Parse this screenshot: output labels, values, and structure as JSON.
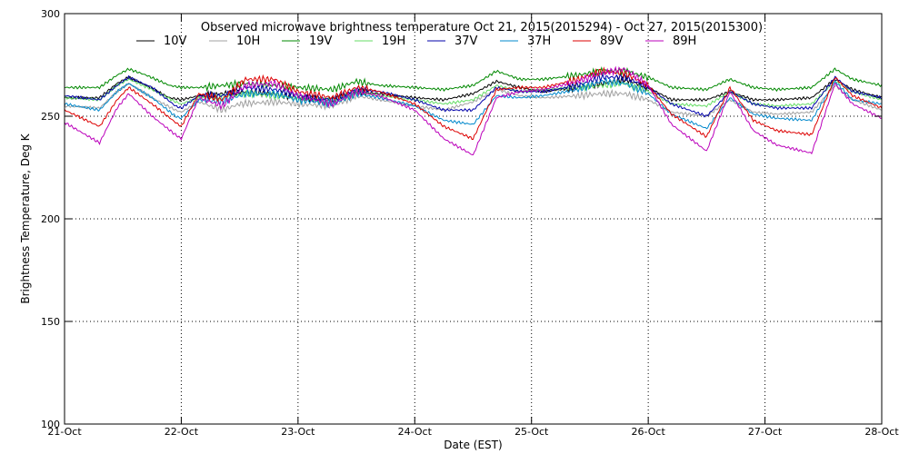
{
  "chart_data": {
    "type": "line",
    "title": "Observed microwave brightness temperature Oct 21, 2015(2015294) - Oct 27, 2015(2015300)",
    "xlabel": "Date (EST)",
    "ylabel": "Brightness Temperature, Deg K",
    "xlim": [
      0,
      7
    ],
    "ylim": [
      100,
      300
    ],
    "x_tick_values": [
      0,
      1,
      2,
      3,
      4,
      5,
      6,
      7
    ],
    "x_tick_labels": [
      "21-Oct",
      "22-Oct",
      "23-Oct",
      "24-Oct",
      "25-Oct",
      "26-Oct",
      "27-Oct",
      "28-Oct"
    ],
    "y_ticks": [
      100,
      150,
      200,
      250,
      300
    ],
    "grid": true,
    "legend_position": "top",
    "series": [
      {
        "name": "10V",
        "color": "#000000",
        "points": [
          [
            0,
            259
          ],
          [
            0.3,
            259
          ],
          [
            0.45,
            266
          ],
          [
            0.55,
            269
          ],
          [
            0.7,
            265
          ],
          [
            0.9,
            259
          ],
          [
            1.0,
            258
          ],
          [
            1.15,
            260
          ],
          [
            1.35,
            261
          ],
          [
            1.55,
            262
          ],
          [
            1.8,
            261
          ],
          [
            2.0,
            259
          ],
          [
            2.3,
            258
          ],
          [
            2.5,
            262
          ],
          [
            2.7,
            261
          ],
          [
            3.0,
            259
          ],
          [
            3.25,
            258
          ],
          [
            3.5,
            261
          ],
          [
            3.7,
            267
          ],
          [
            3.9,
            264
          ],
          [
            4.1,
            262
          ],
          [
            4.4,
            264
          ],
          [
            4.6,
            266
          ],
          [
            4.8,
            268
          ],
          [
            5.0,
            264
          ],
          [
            5.2,
            258
          ],
          [
            5.5,
            258
          ],
          [
            5.7,
            262
          ],
          [
            5.9,
            258
          ],
          [
            6.1,
            258
          ],
          [
            6.4,
            259
          ],
          [
            6.6,
            268
          ],
          [
            6.75,
            263
          ],
          [
            7.0,
            259
          ]
        ]
      },
      {
        "name": "10H",
        "color": "#a0a0a0",
        "points": [
          [
            0,
            255
          ],
          [
            0.3,
            254
          ],
          [
            0.45,
            262
          ],
          [
            0.55,
            266
          ],
          [
            0.75,
            259
          ],
          [
            0.95,
            253
          ],
          [
            1.0,
            252
          ],
          [
            1.15,
            257
          ],
          [
            1.35,
            253
          ],
          [
            1.5,
            256
          ],
          [
            1.8,
            257
          ],
          [
            2.0,
            256
          ],
          [
            2.3,
            255
          ],
          [
            2.5,
            260
          ],
          [
            2.7,
            258
          ],
          [
            3.0,
            255
          ],
          [
            3.25,
            253
          ],
          [
            3.5,
            257
          ],
          [
            3.7,
            263
          ],
          [
            3.9,
            260
          ],
          [
            4.1,
            259
          ],
          [
            4.4,
            260
          ],
          [
            4.6,
            261
          ],
          [
            4.8,
            261
          ],
          [
            5.0,
            258
          ],
          [
            5.2,
            252
          ],
          [
            5.5,
            250
          ],
          [
            5.7,
            258
          ],
          [
            5.9,
            252
          ],
          [
            6.1,
            251
          ],
          [
            6.4,
            252
          ],
          [
            6.6,
            265
          ],
          [
            6.75,
            258
          ],
          [
            7.0,
            253
          ]
        ]
      },
      {
        "name": "19V",
        "color": "#008800",
        "points": [
          [
            0,
            264
          ],
          [
            0.3,
            264
          ],
          [
            0.45,
            270
          ],
          [
            0.55,
            273
          ],
          [
            0.7,
            270
          ],
          [
            0.9,
            265
          ],
          [
            1.0,
            264
          ],
          [
            1.15,
            264
          ],
          [
            1.35,
            265
          ],
          [
            1.55,
            266
          ],
          [
            1.8,
            265
          ],
          [
            2.0,
            264
          ],
          [
            2.3,
            263
          ],
          [
            2.5,
            267
          ],
          [
            2.7,
            265
          ],
          [
            3.0,
            264
          ],
          [
            3.25,
            263
          ],
          [
            3.5,
            265
          ],
          [
            3.7,
            272
          ],
          [
            3.9,
            268
          ],
          [
            4.1,
            268
          ],
          [
            4.4,
            270
          ],
          [
            4.6,
            272
          ],
          [
            4.8,
            272
          ],
          [
            5.0,
            269
          ],
          [
            5.2,
            264
          ],
          [
            5.5,
            263
          ],
          [
            5.7,
            268
          ],
          [
            5.9,
            264
          ],
          [
            6.1,
            263
          ],
          [
            6.4,
            264
          ],
          [
            6.6,
            273
          ],
          [
            6.75,
            268
          ],
          [
            7.0,
            265
          ]
        ]
      },
      {
        "name": "19H",
        "color": "#66dd66",
        "points": [
          [
            0,
            259
          ],
          [
            0.3,
            258
          ],
          [
            0.45,
            265
          ],
          [
            0.55,
            268
          ],
          [
            0.75,
            263
          ],
          [
            0.95,
            257
          ],
          [
            1.0,
            256
          ],
          [
            1.15,
            259
          ],
          [
            1.35,
            259
          ],
          [
            1.55,
            261
          ],
          [
            1.8,
            260
          ],
          [
            2.0,
            259
          ],
          [
            2.3,
            257
          ],
          [
            2.5,
            262
          ],
          [
            2.7,
            260
          ],
          [
            3.0,
            258
          ],
          [
            3.25,
            256
          ],
          [
            3.5,
            258
          ],
          [
            3.7,
            265
          ],
          [
            3.9,
            262
          ],
          [
            4.1,
            263
          ],
          [
            4.4,
            264
          ],
          [
            4.6,
            265
          ],
          [
            4.8,
            266
          ],
          [
            5.0,
            262
          ],
          [
            5.2,
            256
          ],
          [
            5.5,
            255
          ],
          [
            5.7,
            262
          ],
          [
            5.9,
            256
          ],
          [
            6.1,
            255
          ],
          [
            6.4,
            256
          ],
          [
            6.6,
            267
          ],
          [
            6.75,
            262
          ],
          [
            7.0,
            258
          ]
        ]
      },
      {
        "name": "37V",
        "color": "#0000aa",
        "points": [
          [
            0,
            260
          ],
          [
            0.3,
            258
          ],
          [
            0.45,
            265
          ],
          [
            0.55,
            269
          ],
          [
            0.75,
            264
          ],
          [
            0.95,
            255
          ],
          [
            1.0,
            254
          ],
          [
            1.15,
            260
          ],
          [
            1.35,
            260
          ],
          [
            1.55,
            264
          ],
          [
            1.8,
            263
          ],
          [
            2.0,
            260
          ],
          [
            2.3,
            258
          ],
          [
            2.5,
            263
          ],
          [
            2.7,
            262
          ],
          [
            3.0,
            258
          ],
          [
            3.25,
            253
          ],
          [
            3.5,
            253
          ],
          [
            3.7,
            264
          ],
          [
            3.9,
            262
          ],
          [
            4.1,
            262
          ],
          [
            4.4,
            265
          ],
          [
            4.6,
            269
          ],
          [
            4.8,
            269
          ],
          [
            5.0,
            264
          ],
          [
            5.2,
            256
          ],
          [
            5.5,
            250
          ],
          [
            5.7,
            262
          ],
          [
            5.9,
            256
          ],
          [
            6.1,
            254
          ],
          [
            6.4,
            254
          ],
          [
            6.6,
            269
          ],
          [
            6.75,
            262
          ],
          [
            7.0,
            259
          ]
        ]
      },
      {
        "name": "37H",
        "color": "#0088cc",
        "points": [
          [
            0,
            256
          ],
          [
            0.3,
            253
          ],
          [
            0.45,
            262
          ],
          [
            0.55,
            266
          ],
          [
            0.75,
            259
          ],
          [
            0.95,
            250
          ],
          [
            1.0,
            249
          ],
          [
            1.15,
            258
          ],
          [
            1.35,
            257
          ],
          [
            1.55,
            261
          ],
          [
            1.8,
            261
          ],
          [
            2.0,
            258
          ],
          [
            2.3,
            256
          ],
          [
            2.5,
            261
          ],
          [
            2.7,
            259
          ],
          [
            3.0,
            255
          ],
          [
            3.25,
            248
          ],
          [
            3.5,
            246
          ],
          [
            3.7,
            260
          ],
          [
            3.9,
            259
          ],
          [
            4.1,
            260
          ],
          [
            4.4,
            263
          ],
          [
            4.6,
            267
          ],
          [
            4.8,
            266
          ],
          [
            5.0,
            261
          ],
          [
            5.2,
            251
          ],
          [
            5.5,
            244
          ],
          [
            5.7,
            259
          ],
          [
            5.9,
            251
          ],
          [
            6.1,
            249
          ],
          [
            6.4,
            248
          ],
          [
            6.6,
            267
          ],
          [
            6.75,
            258
          ],
          [
            7.0,
            256
          ]
        ]
      },
      {
        "name": "89V",
        "color": "#dd0000",
        "points": [
          [
            0,
            253
          ],
          [
            0.3,
            245
          ],
          [
            0.45,
            258
          ],
          [
            0.55,
            264
          ],
          [
            0.75,
            256
          ],
          [
            0.95,
            247
          ],
          [
            1.0,
            245
          ],
          [
            1.15,
            261
          ],
          [
            1.35,
            258
          ],
          [
            1.55,
            268
          ],
          [
            1.8,
            268
          ],
          [
            2.0,
            262
          ],
          [
            2.3,
            259
          ],
          [
            2.5,
            264
          ],
          [
            2.7,
            262
          ],
          [
            3.0,
            256
          ],
          [
            3.25,
            245
          ],
          [
            3.5,
            239
          ],
          [
            3.7,
            263
          ],
          [
            3.9,
            264
          ],
          [
            4.1,
            264
          ],
          [
            4.4,
            268
          ],
          [
            4.6,
            272
          ],
          [
            4.8,
            271
          ],
          [
            5.0,
            265
          ],
          [
            5.2,
            251
          ],
          [
            5.5,
            240
          ],
          [
            5.7,
            264
          ],
          [
            5.9,
            248
          ],
          [
            6.1,
            243
          ],
          [
            6.4,
            241
          ],
          [
            6.6,
            269
          ],
          [
            6.75,
            260
          ],
          [
            7.0,
            254
          ]
        ]
      },
      {
        "name": "89H",
        "color": "#bb00bb",
        "points": [
          [
            0,
            247
          ],
          [
            0.3,
            237
          ],
          [
            0.45,
            254
          ],
          [
            0.55,
            261
          ],
          [
            0.75,
            250
          ],
          [
            0.95,
            241
          ],
          [
            1.0,
            239
          ],
          [
            1.15,
            259
          ],
          [
            1.35,
            255
          ],
          [
            1.55,
            265
          ],
          [
            1.8,
            266
          ],
          [
            2.0,
            260
          ],
          [
            2.3,
            256
          ],
          [
            2.5,
            262
          ],
          [
            2.7,
            260
          ],
          [
            3.0,
            253
          ],
          [
            3.25,
            239
          ],
          [
            3.5,
            231
          ],
          [
            3.7,
            259
          ],
          [
            3.9,
            262
          ],
          [
            4.1,
            263
          ],
          [
            4.4,
            267
          ],
          [
            4.6,
            271
          ],
          [
            4.8,
            273
          ],
          [
            5.0,
            265
          ],
          [
            5.2,
            246
          ],
          [
            5.5,
            233
          ],
          [
            5.7,
            262
          ],
          [
            5.9,
            243
          ],
          [
            6.1,
            236
          ],
          [
            6.4,
            232
          ],
          [
            6.6,
            266
          ],
          [
            6.75,
            256
          ],
          [
            7.0,
            249
          ]
        ]
      }
    ]
  }
}
